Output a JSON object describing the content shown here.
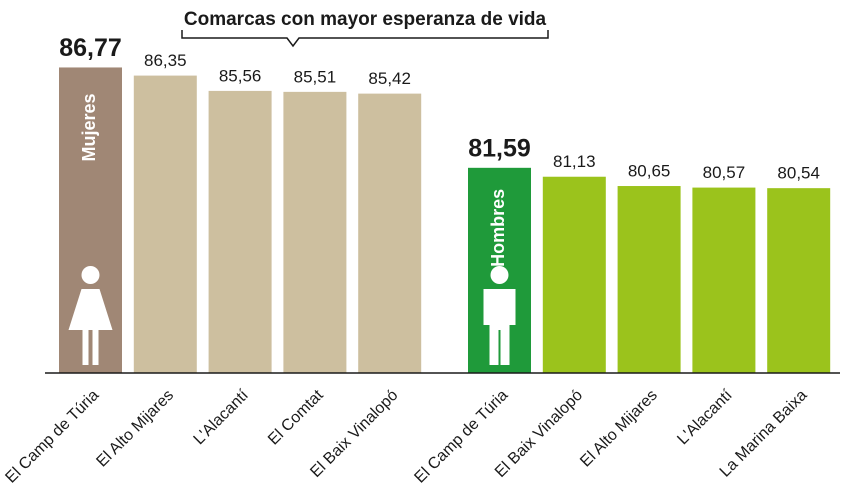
{
  "chart_data": {
    "type": "bar",
    "title": "Comarcas con mayor esperanza de vida",
    "ylim": [
      71,
      87
    ],
    "groups": [
      {
        "name": "Mujeres",
        "highlight_color": "#a08775",
        "color": "#cdbf9f",
        "categories": [
          "El Camp de Túria",
          "El Alto Mijares",
          "L'Alacantí",
          "El Comtat",
          "El Baix Vinalopó"
        ],
        "values": [
          86.77,
          86.35,
          85.56,
          85.51,
          85.42
        ],
        "value_labels": [
          "86,77",
          "86,35",
          "85,56",
          "85,51",
          "85,42"
        ]
      },
      {
        "name": "Hombres",
        "highlight_color": "#1f9a3a",
        "color": "#9bc31c",
        "categories": [
          "El Camp de Túria",
          "El Baix Vinalopó",
          "El Alto Mijares",
          "L'Alacantí",
          "La Marina Baixa"
        ],
        "values": [
          81.59,
          81.13,
          80.65,
          80.57,
          80.54
        ],
        "value_labels": [
          "81,59",
          "81,13",
          "80,65",
          "80,57",
          "80,54"
        ]
      }
    ]
  }
}
